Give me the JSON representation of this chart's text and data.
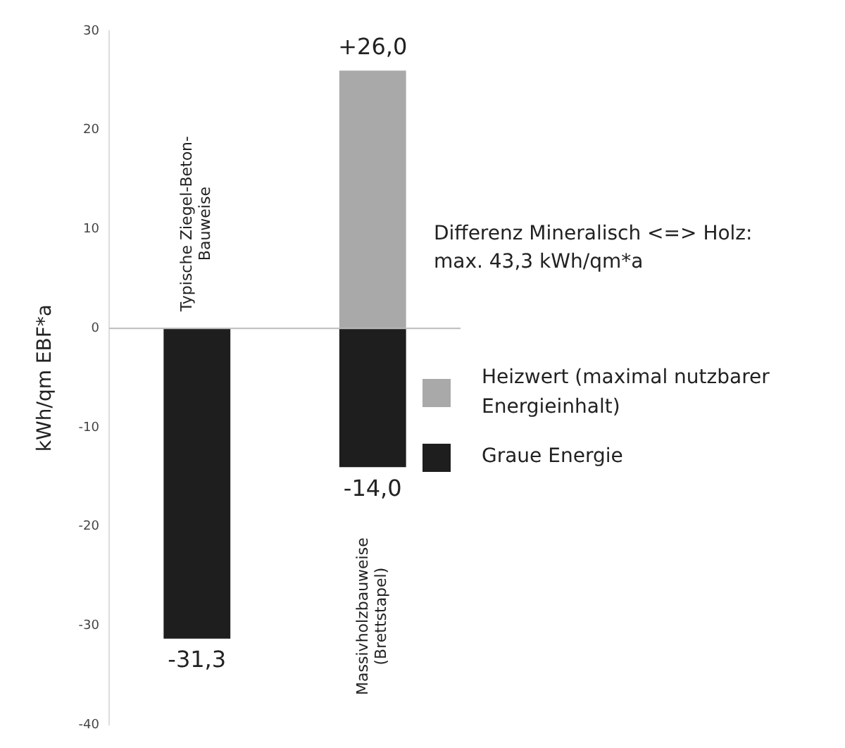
{
  "chart_data": {
    "type": "bar",
    "ylabel": "kWh/qm EBF*a",
    "categories": [
      "Typische Ziegel-Beton-Bauweise",
      "Massivholzbauweise (Brettstapel)"
    ],
    "series": [
      {
        "name": "Heizwert (maximal nutzbarer Energieinhalt)",
        "color": "#a9a9a9",
        "values": [
          null,
          26.0
        ],
        "value_labels": [
          null,
          "+26,0"
        ]
      },
      {
        "name": "Graue Energie",
        "color": "#1e1e1e",
        "values": [
          -31.3,
          -14.0
        ],
        "value_labels": [
          "-31,3",
          "-14,0"
        ]
      }
    ],
    "stacked": true,
    "ylim": [
      -40,
      30
    ],
    "yticks": [
      -40,
      -30,
      -20,
      -10,
      0,
      10,
      20,
      30
    ],
    "grid": false,
    "legend": "right",
    "ref_lines": [
      {
        "axis": "y",
        "value": 0,
        "color": "#bbbbbb"
      }
    ],
    "annotations": [
      "Differenz Mineralisch <=> Holz: max. 43,3 kWh/qm*a"
    ]
  }
}
